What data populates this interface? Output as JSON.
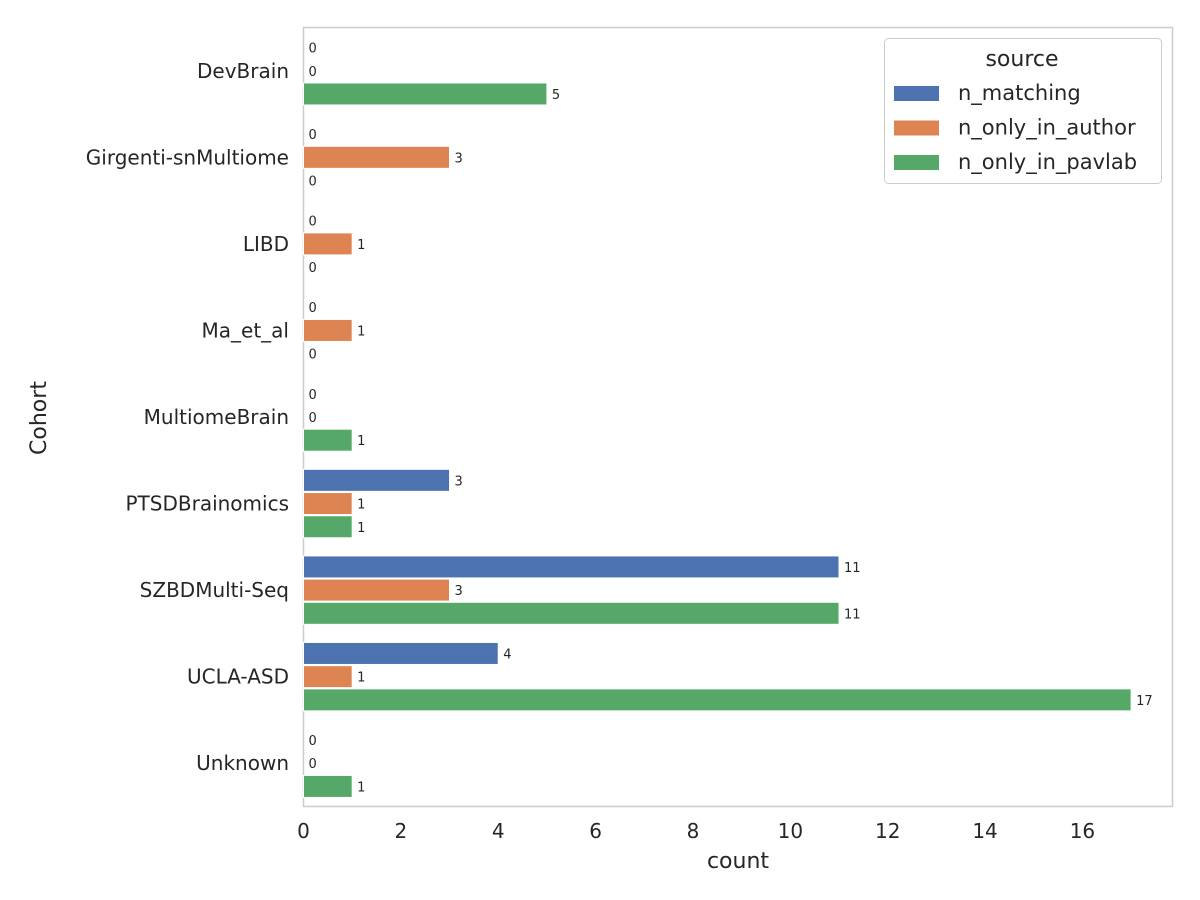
{
  "chart_data": {
    "type": "bar",
    "orientation": "horizontal",
    "categories": [
      "DevBrain",
      "Girgenti-snMultiome",
      "LIBD",
      "Ma_et_al",
      "MultiomeBrain",
      "PTSDBrainomics",
      "SZBDMulti-Seq",
      "UCLA-ASD",
      "Unknown"
    ],
    "series": [
      {
        "name": "n_matching",
        "color": "#4c72b0",
        "values": [
          0,
          0,
          0,
          0,
          0,
          3,
          11,
          4,
          0
        ]
      },
      {
        "name": "n_only_in_author",
        "color": "#dd8452",
        "values": [
          0,
          3,
          1,
          1,
          0,
          1,
          3,
          1,
          0
        ]
      },
      {
        "name": "n_only_in_pavlab",
        "color": "#55a868",
        "values": [
          5,
          0,
          0,
          0,
          1,
          1,
          11,
          17,
          1
        ]
      }
    ],
    "xlabel": "count",
    "ylabel": "Cohort",
    "xlim": [
      0,
      17.85
    ],
    "xticks": [
      0,
      2,
      4,
      6,
      8,
      10,
      12,
      14,
      16
    ],
    "grid": false,
    "legend": {
      "title": "source",
      "placement": "top-right"
    }
  }
}
